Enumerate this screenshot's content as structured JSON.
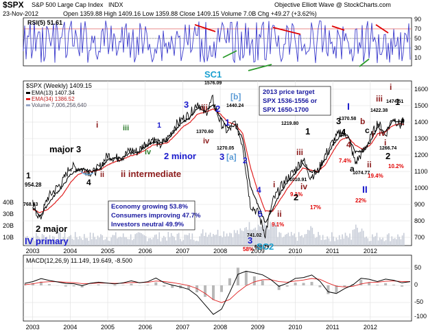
{
  "header": {
    "symbol": "$SPX",
    "name": "S&P 500 Large Cap Index",
    "exchange": "INDX",
    "date": "23-Nov-2012",
    "ohlc_line": "Open 1359.88  High 1409.16  Low 1359.88  Close 1409.15  Volume 7.0B  Chg +49.27 (+3.62%)",
    "credit": "Objective Elliott Wave @ StockCharts.com"
  },
  "rsi_panel": {
    "title": "RSI(5) 51.61",
    "levels": [
      "90",
      "70",
      "50",
      "30",
      "10"
    ]
  },
  "price_panel": {
    "legend": {
      "title": "$SPX (Weekly) 1409.15",
      "ema13": "EMA(13) 1407.34",
      "ema34": "EMA(34) 1386.52",
      "volume": "Volume 7,006,256,640"
    },
    "y_ticks": [
      "1600",
      "1500",
      "1400",
      "1300",
      "1200",
      "1100",
      "1000",
      "900",
      "800",
      "700"
    ],
    "volume_ticks": [
      "40B",
      "30B",
      "20B",
      "10B"
    ],
    "price_target_box": [
      "2013 price target",
      "SPX 1536-1556 or",
      "SPX 1650-1700"
    ],
    "sentiment_box": [
      "Economy growing 53.8%",
      "Consumers improving 47.7%",
      "Investors neutral 49.9%"
    ]
  },
  "macd_panel": {
    "title": "MACD(12,26,9) 11.149, 19.649, -8.500",
    "y_ticks": [
      "50",
      "0",
      "-50",
      "-100"
    ]
  },
  "x_labels": [
    "2003",
    "2004",
    "2005",
    "2006",
    "2007",
    "2008",
    "2009",
    "2010",
    "2011",
    "2012"
  ],
  "annotations": [
    {
      "t": "954.28",
      "c": "#000"
    },
    {
      "t": "768.63",
      "c": "#000"
    },
    {
      "t": "1576.09",
      "c": "#000"
    },
    {
      "t": "1370.60",
      "c": "#000"
    },
    {
      "t": "1440.24",
      "c": "#000"
    },
    {
      "t": "1270.05",
      "c": "#000"
    },
    {
      "t": "741.02",
      "c": "#000"
    },
    {
      "t": "666.79",
      "c": "#000"
    },
    {
      "t": "1219.80",
      "c": "#000"
    },
    {
      "t": "1010.91",
      "c": "#000"
    },
    {
      "t": "1370.58",
      "c": "#000"
    },
    {
      "t": "1074.77",
      "c": "#000"
    },
    {
      "t": "1422.38",
      "c": "#000"
    },
    {
      "t": "1474.51",
      "c": "#000"
    },
    {
      "t": "1266.74",
      "c": "#000"
    },
    {
      "t": "1",
      "c": "#000"
    },
    {
      "t": "major 3",
      "c": "#000"
    },
    {
      "t": "4",
      "c": "#000"
    },
    {
      "t": "2 major",
      "c": "#000"
    },
    {
      "t": "IV primary",
      "c": "#1a1acc"
    },
    {
      "t": "i",
      "c": "#8b1a1a"
    },
    {
      "t": "ii",
      "c": "#8b1a1a"
    },
    {
      "t": "iii",
      "c": "#2a7a2a"
    },
    {
      "t": "iv",
      "c": "#2a7a2a"
    },
    {
      "t": "1",
      "c": "#1a1acc"
    },
    {
      "t": "ii intermediate",
      "c": "#8b1a1a"
    },
    {
      "t": "2 minor",
      "c": "#1a1acc"
    },
    {
      "t": "3",
      "c": "#1a1acc"
    },
    {
      "t": "iii",
      "c": "#8b1a1a"
    },
    {
      "t": "iv",
      "c": "#8b1a1a"
    },
    {
      "t": "SC1",
      "c": "#1aa0d0"
    },
    {
      "t": "2",
      "c": "#1a1acc"
    },
    {
      "t": "[b]",
      "c": "#5b9bd5"
    },
    {
      "t": "3",
      "c": "#1a1acc"
    },
    {
      "t": "[a]",
      "c": "#5b9bd5"
    },
    {
      "t": "1",
      "c": "#1a1acc"
    },
    {
      "t": "2",
      "c": "#1a1acc"
    },
    {
      "t": "4",
      "c": "#1a1acc"
    },
    {
      "t": "5",
      "c": "#1a1acc"
    },
    {
      "t": "3",
      "c": "#1a1acc"
    },
    {
      "t": "SC2",
      "c": "#1aa0d0"
    },
    {
      "t": "58%",
      "c": "#e00000"
    },
    {
      "t": "i",
      "c": "#8b1a1a"
    },
    {
      "t": "ii",
      "c": "#8b1a1a"
    },
    {
      "t": "9.1%",
      "c": "#e00000"
    },
    {
      "t": "iii",
      "c": "#8b1a1a"
    },
    {
      "t": "iv",
      "c": "#8b1a1a"
    },
    {
      "t": "9.1%",
      "c": "#e00000"
    },
    {
      "t": "1",
      "c": "#000"
    },
    {
      "t": "2",
      "c": "#000"
    },
    {
      "t": "17%",
      "c": "#e00000"
    },
    {
      "t": "3",
      "c": "#000"
    },
    {
      "t": "4",
      "c": "#000"
    },
    {
      "t": "7.4%",
      "c": "#e00000"
    },
    {
      "t": "I",
      "c": "#1a1acc"
    },
    {
      "t": "a",
      "c": "#000"
    },
    {
      "t": "b",
      "c": "#8b1a1a"
    },
    {
      "t": "c",
      "c": "#000"
    },
    {
      "t": "ii",
      "c": "#8b1a1a"
    },
    {
      "t": "II",
      "c": "#1a1acc"
    },
    {
      "t": "19.4%",
      "c": "#e00000"
    },
    {
      "t": "22%",
      "c": "#e00000"
    },
    {
      "t": "iii",
      "c": "#8b1a1a"
    },
    {
      "t": "iv",
      "c": "#8b1a1a"
    },
    {
      "t": "1",
      "c": "#000"
    },
    {
      "t": "i",
      "c": "#8b1a1a"
    },
    {
      "t": "2",
      "c": "#000"
    },
    {
      "t": "10.2%",
      "c": "#e00000"
    },
    {
      "t": "4",
      "c": "#8b1a1a"
    },
    {
      "t": "i",
      "c": "#8b1a1a"
    },
    {
      "t": "i",
      "c": "#8b1a1a"
    }
  ],
  "colors": {
    "price": "#000000",
    "ema13": "#000000",
    "ema34": "#e02020",
    "volume": "#c8cdd8",
    "rsi": "#3a3acc",
    "grid": "#d8d8d8",
    "trend_red": "#e00000",
    "trend_green": "#2a9a2a"
  },
  "chart_data": {
    "type": "line",
    "x": [
      2003.0,
      2003.2,
      2003.4,
      2003.6,
      2003.8,
      2004.0,
      2004.2,
      2004.4,
      2004.6,
      2004.8,
      2005.0,
      2005.2,
      2005.4,
      2005.6,
      2005.8,
      2006.0,
      2006.2,
      2006.4,
      2006.6,
      2006.8,
      2007.0,
      2007.2,
      2007.4,
      2007.6,
      2007.8,
      2008.0,
      2008.2,
      2008.4,
      2008.6,
      2008.8,
      2009.0,
      2009.2,
      2009.4,
      2009.6,
      2009.8,
      2010.0,
      2010.2,
      2010.4,
      2010.6,
      2010.8,
      2011.0,
      2011.2,
      2011.4,
      2011.6,
      2011.8,
      2012.0,
      2012.2,
      2012.4,
      2012.6,
      2012.8,
      2012.9
    ],
    "series": [
      {
        "values": [
          900,
          810,
          940,
          990,
          1040,
          1130,
          1120,
          1110,
          1090,
          1130,
          1200,
          1180,
          1190,
          1230,
          1220,
          1270,
          1300,
          1260,
          1300,
          1380,
          1420,
          1450,
          1520,
          1450,
          1540,
          1400,
          1340,
          1400,
          1260,
          900,
          850,
          720,
          920,
          1000,
          1060,
          1110,
          1180,
          1070,
          1100,
          1200,
          1280,
          1340,
          1320,
          1150,
          1220,
          1300,
          1400,
          1320,
          1430,
          1380,
          1409
        ]
      },
      {
        "values": [
          880,
          830,
          900,
          960,
          1010,
          1080,
          1110,
          1110,
          1100,
          1120,
          1170,
          1180,
          1185,
          1210,
          1215,
          1250,
          1280,
          1270,
          1290,
          1350,
          1400,
          1430,
          1490,
          1470,
          1500,
          1430,
          1370,
          1380,
          1300,
          1010,
          900,
          790,
          870,
          970,
          1040,
          1090,
          1150,
          1100,
          1100,
          1170,
          1260,
          1320,
          1320,
          1220,
          1220,
          1280,
          1370,
          1340,
          1410,
          1400,
          1407
        ]
      },
      {
        "values": [
          870,
          850,
          870,
          910,
          960,
          1030,
          1080,
          1100,
          1100,
          1110,
          1140,
          1160,
          1175,
          1195,
          1205,
          1230,
          1260,
          1265,
          1275,
          1320,
          1370,
          1400,
          1450,
          1460,
          1480,
          1450,
          1400,
          1385,
          1330,
          1130,
          980,
          860,
          860,
          930,
          1000,
          1060,
          1120,
          1110,
          1100,
          1140,
          1220,
          1290,
          1310,
          1260,
          1235,
          1260,
          1330,
          1340,
          1380,
          1390,
          1386
        ]
      }
    ],
    "ylim": [
      650,
      1650
    ],
    "xlim": [
      2002.75,
      2013.1
    ],
    "xlabel": "",
    "ylabel": "",
    "grid": true,
    "legend": "top-left"
  }
}
